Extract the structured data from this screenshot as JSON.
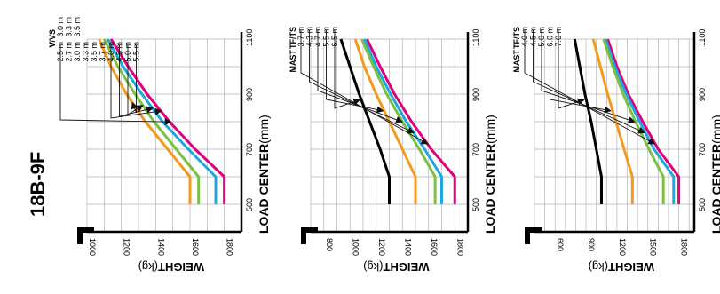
{
  "model": "18B-9F",
  "colors": {
    "magenta": "#e0007a",
    "cyan": "#1ea7e1",
    "green": "#7ac143",
    "orange": "#f39a1e",
    "black": "#000000",
    "grid": "#b3b3b3",
    "arrow": "#111111"
  },
  "chart_data": [
    {
      "type": "line",
      "orientation": "rotated-90-clockwise",
      "xlabel": "LOAD CENTER",
      "xunit": "(mm)",
      "ylabel": "WEIGHT",
      "yunit": "(kg)",
      "xlim": [
        400,
        1100
      ],
      "ylim": [
        1000,
        1900
      ],
      "x_ticks": [
        500,
        700,
        900,
        1100
      ],
      "y_ticks": [
        1000,
        1200,
        1400,
        1600,
        1800
      ],
      "grid": true,
      "header": {
        "col1": "V",
        "col2": "V/VS"
      },
      "labels": [
        {
          "col1": "2.5 m",
          "col2": "3.0 m"
        },
        {
          "col1": "2.7 m",
          "col2": "3.3 m"
        },
        {
          "col1": "3.0 m",
          "col2": "3.5 m"
        },
        {
          "col1": "3.3 m",
          "col2": ""
        },
        {
          "col1": "3.5 m",
          "col2": ""
        },
        {
          "col1": "3.7 m",
          "col2": ""
        },
        {
          "col1": "4.0 m",
          "col2": ""
        },
        {
          "col1": "4.5 m",
          "col2": ""
        },
        {
          "col1": "5.0 m",
          "col2": ""
        },
        {
          "col1": "5.5 m",
          "col2": ""
        }
      ],
      "series": [
        {
          "color": "magenta",
          "x": [
            500,
            600,
            700,
            800,
            900,
            1000,
            1100
          ],
          "values": [
            1800,
            1800,
            1630,
            1480,
            1350,
            1240,
            1140
          ]
        },
        {
          "color": "cyan",
          "x": [
            500,
            600,
            700,
            800,
            900,
            1000,
            1100
          ],
          "values": [
            1750,
            1750,
            1590,
            1440,
            1320,
            1210,
            1120
          ]
        },
        {
          "color": "green",
          "x": [
            500,
            600,
            700,
            800,
            900,
            1000,
            1100
          ],
          "values": [
            1650,
            1650,
            1520,
            1390,
            1280,
            1180,
            1100
          ]
        },
        {
          "color": "orange",
          "x": [
            500,
            600,
            700,
            800,
            900,
            1000,
            1100
          ],
          "values": [
            1600,
            1600,
            1470,
            1340,
            1230,
            1140,
            1070
          ]
        }
      ],
      "arrows": [
        {
          "from_label": 0,
          "to_series": 0,
          "at_x": 780
        },
        {
          "from_label": 6,
          "to_series": 0,
          "at_x": 820
        },
        {
          "from_label": 7,
          "to_series": 1,
          "at_x": 830
        },
        {
          "from_label": 8,
          "to_series": 2,
          "at_x": 840
        },
        {
          "from_label": 9,
          "to_series": 3,
          "at_x": 850
        }
      ]
    },
    {
      "type": "line",
      "orientation": "rotated-90-clockwise",
      "xlabel": "LOAD CENTER",
      "xunit": "(mm)",
      "ylabel": "WEIGHT",
      "yunit": "(kg)",
      "xlim": [
        400,
        1100
      ],
      "ylim": [
        700,
        1900
      ],
      "x_ticks": [
        500,
        700,
        900,
        1100
      ],
      "y_ticks": [
        800,
        1000,
        1200,
        1400,
        1600,
        1800
      ],
      "grid": true,
      "header": {
        "col1": "TF/TS",
        "col2": "MAST"
      },
      "labels": [
        {
          "col1": "3.7 m",
          "col2": ""
        },
        {
          "col1": "4.3 m",
          "col2": ""
        },
        {
          "col1": "4.7 m",
          "col2": ""
        },
        {
          "col1": "5.5 m",
          "col2": ""
        },
        {
          "col1": "6.5 m",
          "col2": ""
        }
      ],
      "series": [
        {
          "color": "magenta",
          "x": [
            500,
            600,
            700,
            800,
            900,
            1000,
            1100
          ],
          "values": [
            1800,
            1800,
            1620,
            1470,
            1340,
            1230,
            1130
          ]
        },
        {
          "color": "cyan",
          "x": [
            500,
            600,
            700,
            800,
            900,
            1000,
            1100
          ],
          "values": [
            1700,
            1700,
            1570,
            1430,
            1310,
            1200,
            1110
          ]
        },
        {
          "color": "green",
          "x": [
            500,
            600,
            700,
            800,
            900,
            1000,
            1100
          ],
          "values": [
            1650,
            1650,
            1530,
            1400,
            1280,
            1180,
            1090
          ]
        },
        {
          "color": "orange",
          "x": [
            500,
            600,
            700,
            800,
            900,
            1000,
            1100
          ],
          "values": [
            1500,
            1500,
            1400,
            1300,
            1200,
            1110,
            1040
          ]
        },
        {
          "color": "black",
          "x": [
            500,
            600,
            700,
            800,
            900,
            1000,
            1100
          ],
          "values": [
            1300,
            1300,
            1230,
            1150,
            1070,
            1000,
            930
          ]
        }
      ],
      "arrows": [
        {
          "from_label": 0,
          "to_series": 0,
          "at_x": 700
        },
        {
          "from_label": 1,
          "to_series": 1,
          "at_x": 740
        },
        {
          "from_label": 2,
          "to_series": 2,
          "at_x": 780
        },
        {
          "from_label": 3,
          "to_series": 3,
          "at_x": 820
        },
        {
          "from_label": 4,
          "to_series": 4,
          "at_x": 860
        }
      ]
    },
    {
      "type": "line",
      "orientation": "rotated-90-clockwise",
      "xlabel": "LOAD CENTER",
      "xunit": "(mm)",
      "ylabel": "WEIGHT",
      "yunit": "(kg)",
      "xlim": [
        400,
        1100
      ],
      "ylim": [
        400,
        1950
      ],
      "x_ticks": [
        500,
        700,
        900,
        1100
      ],
      "y_ticks": [
        600,
        900,
        1200,
        1500,
        1800
      ],
      "grid": true,
      "header": {
        "col1": "TF/TS",
        "col2": "MAST"
      },
      "labels": [
        {
          "col1": "4.0 m",
          "col2": ""
        },
        {
          "col1": "4.5 m",
          "col2": ""
        },
        {
          "col1": "5.0 m",
          "col2": ""
        },
        {
          "col1": "6.0 m",
          "col2": ""
        },
        {
          "col1": "7.0 m",
          "col2": ""
        }
      ],
      "series": [
        {
          "color": "magenta",
          "x": [
            500,
            600,
            700,
            800,
            900,
            1000,
            1100
          ],
          "values": [
            1800,
            1800,
            1600,
            1450,
            1310,
            1200,
            1110
          ]
        },
        {
          "color": "cyan",
          "x": [
            500,
            600,
            700,
            800,
            900,
            1000,
            1100
          ],
          "values": [
            1750,
            1750,
            1560,
            1420,
            1290,
            1180,
            1090
          ]
        },
        {
          "color": "green",
          "x": [
            500,
            600,
            700,
            800,
            900,
            1000,
            1100
          ],
          "values": [
            1650,
            1650,
            1510,
            1380,
            1260,
            1160,
            1070
          ]
        },
        {
          "color": "orange",
          "x": [
            500,
            600,
            700,
            800,
            900,
            1000,
            1100
          ],
          "values": [
            1350,
            1350,
            1270,
            1190,
            1110,
            1040,
            970
          ]
        },
        {
          "color": "black",
          "x": [
            500,
            600,
            700,
            800,
            900,
            1000,
            1100
          ],
          "values": [
            1050,
            1050,
            1000,
            950,
            890,
            840,
            790
          ]
        }
      ],
      "arrows": [
        {
          "from_label": 0,
          "to_series": 0,
          "at_x": 700
        },
        {
          "from_label": 1,
          "to_series": 1,
          "at_x": 740
        },
        {
          "from_label": 2,
          "to_series": 2,
          "at_x": 780
        },
        {
          "from_label": 3,
          "to_series": 3,
          "at_x": 820
        },
        {
          "from_label": 4,
          "to_series": 4,
          "at_x": 860
        }
      ]
    }
  ]
}
